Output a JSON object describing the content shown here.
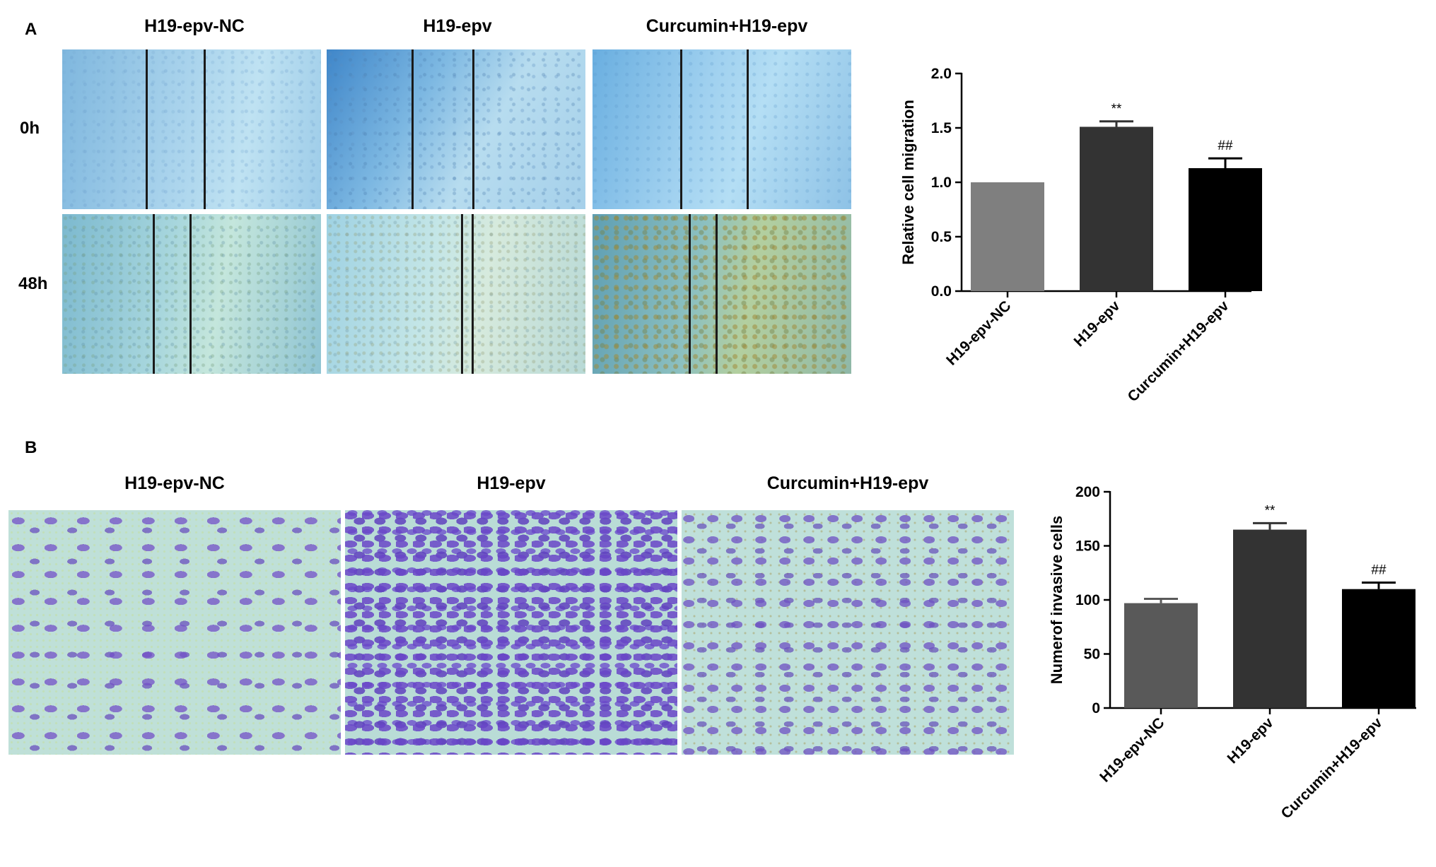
{
  "panel_a": {
    "letter": "A",
    "column_titles": [
      "H19-epv-NC",
      "H19-epv",
      "Curcumin+H19-epv"
    ],
    "row_labels": [
      "0h",
      "48h"
    ]
  },
  "panel_b": {
    "letter": "B",
    "column_titles": [
      "H19-epv-NC",
      "H19-epv",
      "Curcumin+H19-epv"
    ]
  },
  "chart_data": [
    {
      "type": "bar",
      "categories": [
        "H19-epv-NC",
        "H19-epv",
        "Curcumin+H19-epv"
      ],
      "values": [
        1.0,
        1.51,
        1.13
      ],
      "errors": [
        0,
        0.05,
        0.09
      ],
      "significance": [
        "",
        "**",
        "##"
      ],
      "ylabel": "Relative cell migration",
      "ylim": [
        0,
        2.0
      ],
      "yticks": [
        "0.0",
        "0.5",
        "1.0",
        "1.5",
        "2.0"
      ],
      "colors": [
        "#7f7f7f",
        "#333333",
        "#000000"
      ]
    },
    {
      "type": "bar",
      "categories": [
        "H19-epv-NC",
        "H19-epv",
        "Curcumin+H19-epv"
      ],
      "values": [
        97,
        165,
        110
      ],
      "errors": [
        4,
        6,
        6
      ],
      "significance": [
        "",
        "**",
        "##"
      ],
      "ylabel": "Numerof invasive cells",
      "ylim": [
        0,
        200
      ],
      "yticks": [
        "0",
        "50",
        "100",
        "150",
        "200"
      ],
      "colors": [
        "#595959",
        "#333333",
        "#000000"
      ]
    }
  ]
}
